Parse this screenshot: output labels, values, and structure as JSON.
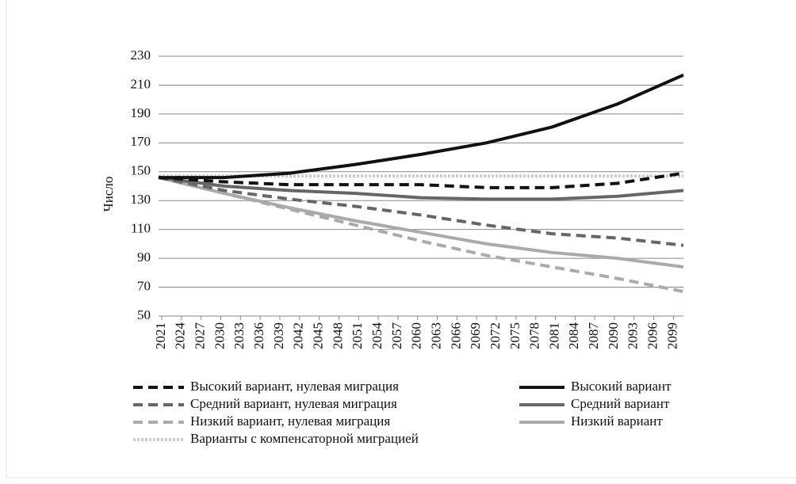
{
  "chart_data": {
    "type": "line",
    "y_label": "Число",
    "x": [
      2021,
      2031,
      2041,
      2051,
      2061,
      2071,
      2081,
      2091,
      2101
    ],
    "xlim": [
      2021,
      2101
    ],
    "xticks": [
      2021,
      2024,
      2027,
      2030,
      2033,
      2036,
      2039,
      2042,
      2045,
      2048,
      2051,
      2054,
      2057,
      2060,
      2063,
      2066,
      2069,
      2072,
      2075,
      2078,
      2081,
      2084,
      2087,
      2090,
      2093,
      2096,
      2099
    ],
    "ylim": [
      50,
      230
    ],
    "yticks": [
      50,
      70,
      90,
      110,
      130,
      150,
      170,
      190,
      210,
      230
    ],
    "grid": true,
    "series": [
      {
        "name": "Высокий вариант, нулевая миграция",
        "color": "#111111",
        "line_style": "dashed",
        "values": [
          146,
          143,
          141,
          141,
          141,
          139,
          139,
          142,
          149
        ]
      },
      {
        "name": "Высокий вариант",
        "color": "#111111",
        "line_style": "solid",
        "values": [
          146,
          146,
          149,
          155,
          162,
          170,
          181,
          197,
          217
        ]
      },
      {
        "name": "Средний вариант, нулевая миграция",
        "color": "#666666",
        "line_style": "dashed",
        "values": [
          146,
          137,
          131,
          126,
          120,
          113,
          107,
          104,
          99
        ]
      },
      {
        "name": "Средний вариант",
        "color": "#666666",
        "line_style": "solid",
        "values": [
          146,
          140,
          137,
          135,
          132,
          131,
          131,
          133,
          137
        ]
      },
      {
        "name": "Низкий вариант, нулевая миграция",
        "color": "#aaaaaa",
        "line_style": "dashed",
        "values": [
          146,
          135,
          124,
          113,
          102,
          92,
          84,
          76,
          67
        ]
      },
      {
        "name": "Низкий вариант",
        "color": "#aaaaaa",
        "line_style": "solid",
        "values": [
          146,
          135,
          125,
          116,
          108,
          100,
          94,
          90,
          84
        ]
      },
      {
        "name": "Варианты с компенсаторной миграцией",
        "color": "#cccccc",
        "line_style": "dotted",
        "values": [
          147,
          147,
          147,
          147,
          147,
          147,
          147,
          147,
          147
        ]
      }
    ]
  }
}
